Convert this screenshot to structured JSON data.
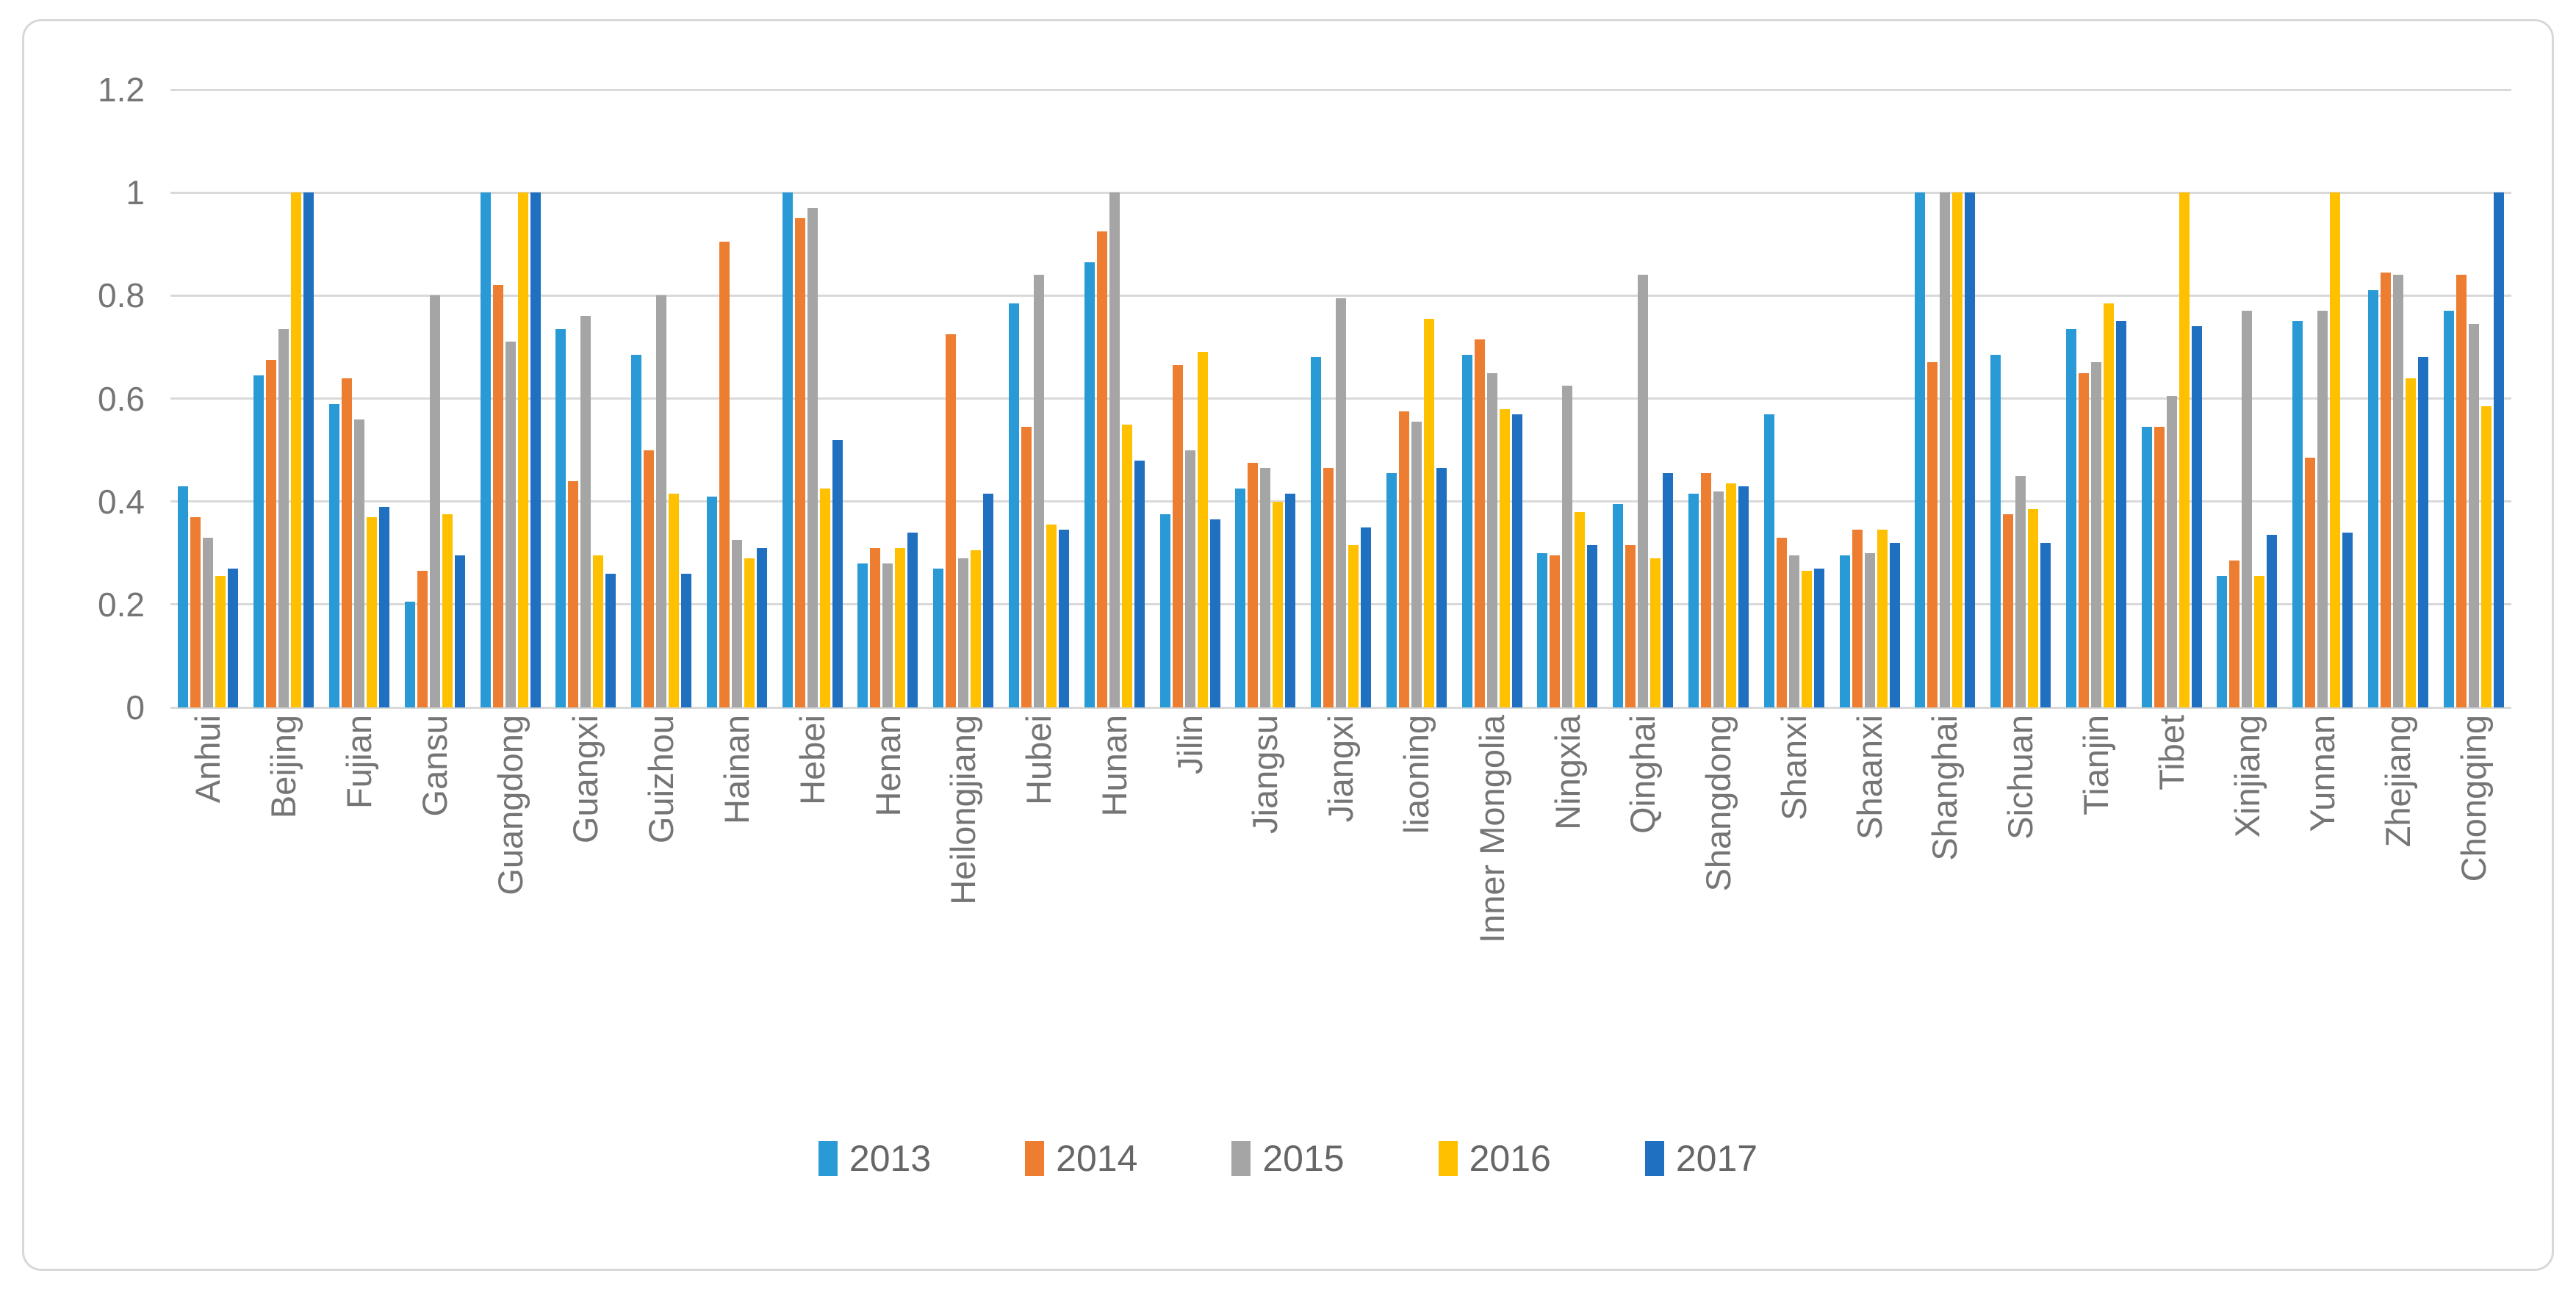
{
  "chart_data": {
    "type": "bar",
    "title": "",
    "xlabel": "",
    "ylabel": "",
    "ylim": [
      0,
      1.2
    ],
    "grid": true,
    "legend_position": "bottom",
    "background_color": "#FFFFFF",
    "gridline_color": "#D9D9D9",
    "axis_label_color": "#757575",
    "y_ticks": [
      "0",
      "0.2",
      "0.4",
      "0.6",
      "0.8",
      "1",
      "1.2"
    ],
    "categories": [
      "Anhui",
      "Beijing",
      "Fujian",
      "Gansu",
      "Guangdong",
      "Guangxi",
      "Guizhou",
      "Hainan",
      "Hebei",
      "Henan",
      "Heilongjiang",
      "Hubei",
      "Hunan",
      "Jilin",
      "Jiangsu",
      "Jiangxi",
      "liaoning",
      "Inner Mongolia",
      "Ningxia",
      "Qinghai",
      "Shangdong",
      "Shanxi",
      "Shaanxi",
      "Shanghai",
      "Sichuan",
      "Tianjin",
      "Tibet",
      "Xinjiang",
      "Yunnan",
      "Zhejiang",
      "Chongqing"
    ],
    "series": [
      {
        "name": "2013",
        "color": "#2A9AD6",
        "values": [
          0.43,
          0.645,
          0.59,
          0.205,
          1.0,
          0.735,
          0.685,
          0.41,
          1.0,
          0.28,
          0.27,
          0.785,
          0.865,
          0.375,
          0.425,
          0.68,
          0.455,
          0.685,
          0.3,
          0.395,
          0.415,
          0.57,
          0.295,
          1.0,
          0.685,
          0.735,
          0.545,
          0.255,
          0.75,
          0.81,
          0.77
        ]
      },
      {
        "name": "2014",
        "color": "#ED7D31",
        "values": [
          0.37,
          0.675,
          0.64,
          0.265,
          0.82,
          0.44,
          0.5,
          0.905,
          0.95,
          0.31,
          0.725,
          0.545,
          0.925,
          0.665,
          0.475,
          0.465,
          0.575,
          0.715,
          0.295,
          0.315,
          0.455,
          0.33,
          0.345,
          0.67,
          0.375,
          0.65,
          0.545,
          0.285,
          0.485,
          0.845,
          0.84
        ]
      },
      {
        "name": "2015",
        "color": "#A5A5A5",
        "values": [
          0.33,
          0.735,
          0.56,
          0.8,
          0.71,
          0.76,
          0.8,
          0.325,
          0.97,
          0.28,
          0.29,
          0.84,
          1.0,
          0.5,
          0.465,
          0.795,
          0.555,
          0.65,
          0.625,
          0.84,
          0.42,
          0.295,
          0.3,
          1.0,
          0.45,
          0.67,
          0.605,
          0.77,
          0.77,
          0.84,
          0.745
        ]
      },
      {
        "name": "2016",
        "color": "#FFC000",
        "values": [
          0.255,
          1.0,
          0.37,
          0.375,
          1.0,
          0.295,
          0.415,
          0.29,
          0.425,
          0.31,
          0.305,
          0.355,
          0.55,
          0.69,
          0.4,
          0.315,
          0.755,
          0.58,
          0.38,
          0.29,
          0.435,
          0.265,
          0.345,
          1.0,
          0.385,
          0.785,
          1.0,
          0.255,
          1.0,
          0.64,
          0.585
        ]
      },
      {
        "name": "2017",
        "color": "#1F70C1",
        "values": [
          0.27,
          1.0,
          0.39,
          0.295,
          1.0,
          0.26,
          0.26,
          0.31,
          0.52,
          0.34,
          0.415,
          0.345,
          0.48,
          0.365,
          0.415,
          0.35,
          0.465,
          0.57,
          0.315,
          0.455,
          0.43,
          0.27,
          0.32,
          1.0,
          0.32,
          0.75,
          0.74,
          0.335,
          0.34,
          0.68,
          1.0
        ]
      }
    ]
  }
}
